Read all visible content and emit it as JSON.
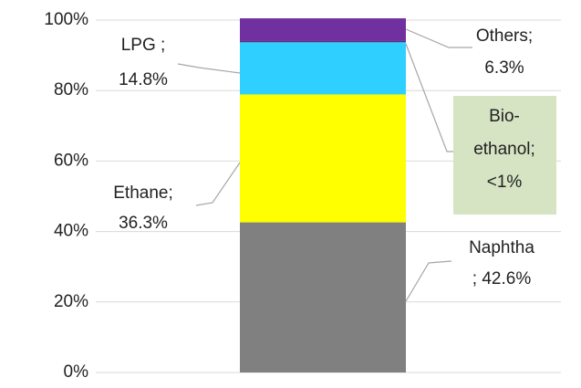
{
  "chart_data": {
    "type": "stacked_bar",
    "ylim": [
      0,
      100
    ],
    "yticks": [
      {
        "value": 0,
        "label": "0%"
      },
      {
        "value": 20,
        "label": "20%"
      },
      {
        "value": 40,
        "label": "40%"
      },
      {
        "value": 60,
        "label": "60%"
      },
      {
        "value": 80,
        "label": "80%"
      },
      {
        "value": 100,
        "label": "100%"
      }
    ],
    "grid": true,
    "series": [
      {
        "label_lines": [
          "Naphtha"
        ],
        "color": "#808080",
        "values": [
          42.6
        ],
        "value_labels": [
          "; 42.6%"
        ]
      },
      {
        "label_lines": [
          "Ethane;"
        ],
        "color": "#ffff00",
        "values": [
          36.3
        ],
        "value_labels": [
          "36.3%"
        ]
      },
      {
        "label_lines": [
          "LPG ;"
        ],
        "color": "#2fd0ff",
        "values": [
          14.8
        ],
        "value_labels": [
          "14.8%"
        ]
      },
      {
        "label_lines": [
          "Bio-",
          "ethanol;"
        ],
        "color": "#5a2d82",
        "values": [
          0.5
        ],
        "value_labels": [
          "<1%"
        ]
      },
      {
        "label_lines": [
          "Others;"
        ],
        "color": "#7030a0",
        "values": [
          6.3
        ],
        "value_labels": [
          "6.3%"
        ]
      }
    ]
  }
}
